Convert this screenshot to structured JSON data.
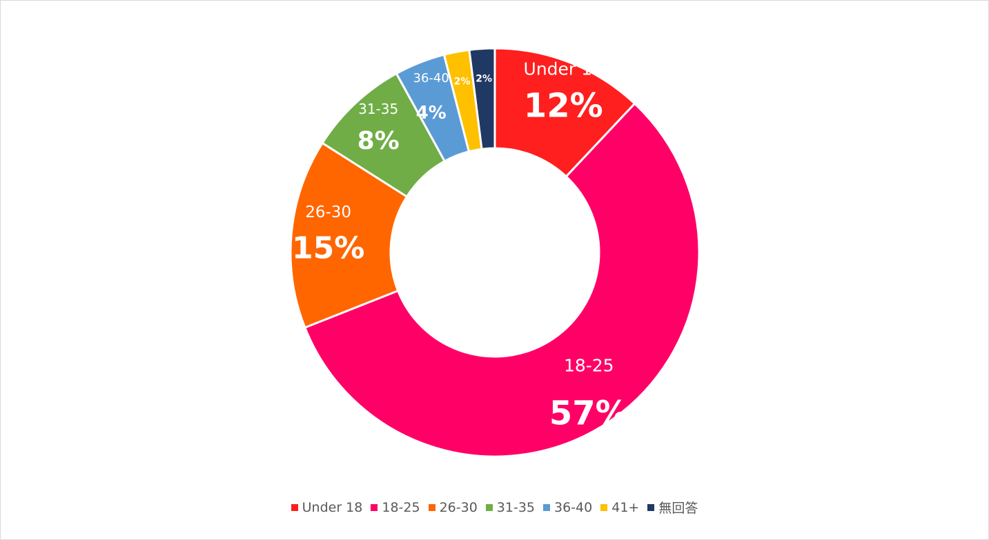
{
  "chart_data": {
    "type": "pie",
    "variant": "donut",
    "title": "",
    "legend_position": "bottom",
    "slices": [
      {
        "label": "Under 18",
        "value": 12,
        "display": "12%",
        "color": "#ff1f1f"
      },
      {
        "label": "18-25",
        "value": 57,
        "display": "57%",
        "color": "#ff0066"
      },
      {
        "label": "26-30",
        "value": 15,
        "display": "15%",
        "color": "#ff6600"
      },
      {
        "label": "31-35",
        "value": 8,
        "display": "8%",
        "color": "#70ad47"
      },
      {
        "label": "36-40",
        "value": 4,
        "display": "4%",
        "color": "#5b9bd5"
      },
      {
        "label": "41+",
        "value": 2,
        "display": "2%",
        "color": "#ffc000"
      },
      {
        "label": "無回答",
        "value": 2,
        "display": "2%",
        "color": "#203864"
      }
    ]
  }
}
